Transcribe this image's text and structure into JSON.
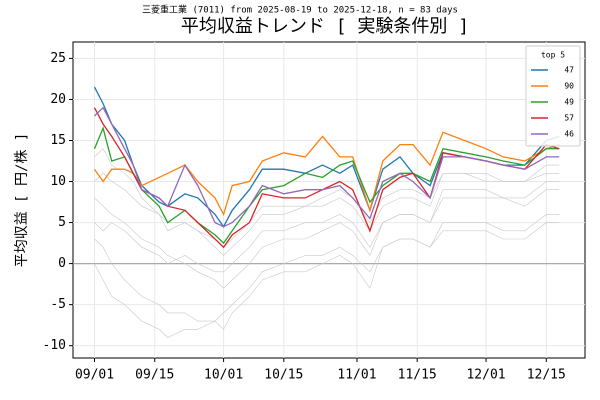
{
  "chart_data": {
    "type": "line",
    "title": "平均収益トレンド [ 実験条件別 ]",
    "subtitle": "三菱重工業 (7011) from 2025-08-19 to 2025-12-18, n = 83 days",
    "y_label": "平均収益 [ 円/株 ]",
    "legend_title": "top 5",
    "legend": "upper right",
    "grid": true,
    "hlines": [
      0
    ],
    "x": [
      "2025-09-01",
      "2025-09-03",
      "2025-09-05",
      "2025-09-08",
      "2025-09-10",
      "2025-09-12",
      "2025-09-16",
      "2025-09-18",
      "2025-09-22",
      "2025-09-25",
      "2025-09-29",
      "2025-10-01",
      "2025-10-03",
      "2025-10-07",
      "2025-10-10",
      "2025-10-15",
      "2025-10-20",
      "2025-10-24",
      "2025-10-28",
      "2025-10-31",
      "2025-11-04",
      "2025-11-07",
      "2025-11-11",
      "2025-11-14",
      "2025-11-18",
      "2025-11-21",
      "2025-11-26",
      "2025-12-01",
      "2025-12-05",
      "2025-12-10",
      "2025-12-15",
      "2025-12-18"
    ],
    "xlim": [
      "2025-08-27",
      "2025-12-24"
    ],
    "xticks": [
      {
        "value": "2025-09-01",
        "label": "09/01"
      },
      {
        "value": "2025-09-15",
        "label": "09/15"
      },
      {
        "value": "2025-10-01",
        "label": "10/01"
      },
      {
        "value": "2025-10-15",
        "label": "10/15"
      },
      {
        "value": "2025-11-01",
        "label": "11/01"
      },
      {
        "value": "2025-11-15",
        "label": "11/15"
      },
      {
        "value": "2025-12-01",
        "label": "12/01"
      },
      {
        "value": "2025-12-15",
        "label": "12/15"
      }
    ],
    "ylim": [
      -11.5,
      27
    ],
    "yticks": [
      -10,
      -5,
      0,
      5,
      10,
      15,
      20,
      25
    ],
    "series": [
      {
        "color": "#c8c8c8",
        "values": [
          8,
          7,
          6,
          5,
          4,
          3,
          2,
          1,
          0,
          -1,
          -2,
          -3,
          -2,
          0,
          2,
          3,
          3,
          4,
          5,
          4,
          1,
          5,
          6,
          6,
          5,
          8,
          8,
          8,
          8,
          7,
          9,
          9
        ]
      },
      {
        "color": "#c8c8c8",
        "values": [
          3,
          2,
          0,
          -2,
          -3,
          -4,
          -5,
          -6,
          -6,
          -7,
          -7,
          -8,
          -6,
          -4,
          -2,
          -1,
          -1,
          0,
          1,
          0,
          -3,
          2,
          3,
          3,
          2,
          5,
          5,
          5,
          4,
          4,
          6,
          6
        ]
      },
      {
        "color": "#c8c8c8",
        "values": [
          10,
          11,
          10,
          9,
          8,
          7,
          6,
          5,
          5,
          4,
          3,
          2,
          3,
          5,
          7,
          7,
          7,
          8,
          9,
          8,
          5,
          8,
          9,
          9,
          8,
          11,
          11,
          10,
          10,
          10,
          12,
          12
        ]
      },
      {
        "color": "#c8c8c8",
        "values": [
          5,
          4,
          5,
          4,
          3,
          2,
          1,
          0,
          1,
          0,
          -1,
          -1,
          0,
          2,
          4,
          4,
          5,
          5,
          6,
          5,
          2,
          5,
          6,
          6,
          5,
          9,
          9,
          9,
          8,
          8,
          10,
          10
        ]
      },
      {
        "color": "#c8c8c8",
        "values": [
          0,
          -2,
          -4,
          -5,
          -6,
          -7,
          -8,
          -9,
          -8,
          -8,
          -7,
          -6,
          -5,
          -3,
          -1,
          0,
          1,
          1,
          2,
          1,
          -1,
          2,
          3,
          3,
          2,
          4,
          4,
          4,
          3,
          3,
          5,
          5
        ]
      },
      {
        "color": "#c8c8c8",
        "values": [
          13,
          14,
          12,
          11,
          10,
          8,
          6,
          4,
          5,
          4,
          2,
          1,
          2,
          4,
          6,
          6,
          7,
          7,
          8,
          7,
          4,
          7,
          8,
          8,
          7,
          11,
          11,
          11,
          10,
          10,
          11,
          11
        ]
      },
      {
        "name": "47",
        "color": "#1f77b4",
        "values": [
          21.5,
          19.5,
          17,
          15,
          12,
          9.5,
          7.5,
          7,
          8.5,
          8,
          6,
          4.5,
          6.5,
          9,
          11.5,
          11.5,
          11,
          12,
          11,
          12,
          6.5,
          11.5,
          13,
          11,
          9.5,
          13.5,
          13,
          12.5,
          12,
          12,
          15,
          15.5
        ]
      },
      {
        "name": "90",
        "color": "#ff7f0e",
        "values": [
          11.5,
          10,
          11.5,
          11.5,
          11,
          9.5,
          10.5,
          11,
          12,
          10,
          8,
          6,
          9.5,
          10,
          12.5,
          13.5,
          13,
          15.5,
          13,
          13,
          6.5,
          12.5,
          14.5,
          14.5,
          12,
          16,
          15,
          14,
          13,
          12.5,
          14,
          14.5
        ]
      },
      {
        "name": "49",
        "color": "#2ca02c",
        "values": [
          14,
          16.5,
          12.5,
          13,
          11,
          9,
          7,
          5,
          6.5,
          5,
          3.5,
          2.5,
          4,
          7,
          9,
          9.5,
          11,
          10.5,
          12,
          12.5,
          7.5,
          9.5,
          11,
          11,
          10,
          14,
          13.5,
          13,
          12.5,
          12,
          14,
          14
        ]
      },
      {
        "name": "57",
        "color": "#d62728",
        "values": [
          19,
          17,
          15.5,
          13,
          11,
          9,
          8,
          7,
          6.5,
          5,
          3,
          2,
          3.5,
          5,
          8.5,
          8,
          8,
          9,
          10,
          9,
          4,
          9,
          10.5,
          11,
          8,
          13.5,
          13,
          12.5,
          12,
          11.5,
          14.5,
          14
        ]
      },
      {
        "name": "46",
        "color": "#9467bd",
        "values": [
          18,
          19,
          17,
          14,
          12,
          9,
          8,
          7,
          12,
          9.5,
          5,
          4.5,
          5,
          7,
          9.5,
          8.5,
          9,
          9,
          9.5,
          8,
          5.5,
          10,
          11,
          10,
          8,
          13,
          13,
          12.5,
          12,
          11.5,
          13,
          13
        ]
      }
    ]
  }
}
